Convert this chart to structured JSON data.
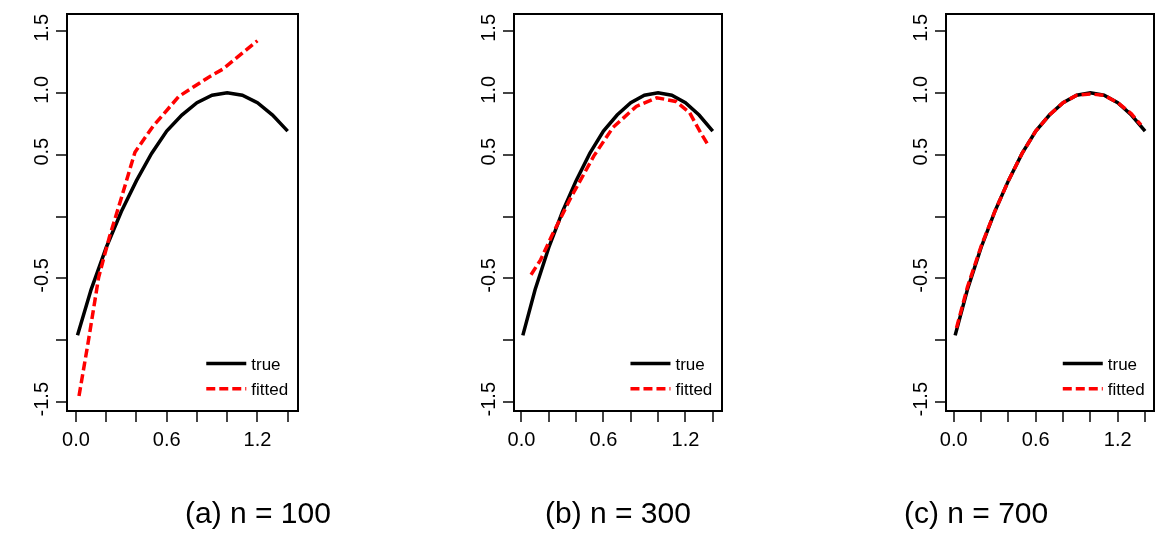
{
  "chart_data": [
    {
      "type": "line",
      "title": "(a) n = 100",
      "legend": "bottom right",
      "xlim": [
        -0.05,
        1.46
      ],
      "ylim": [
        -1.56,
        1.63
      ],
      "xticks": [
        {
          "value": 0,
          "label": "0.0"
        },
        {
          "value": 0.2,
          "label": null
        },
        {
          "value": 0.4,
          "label": null
        },
        {
          "value": 0.6,
          "label": "0.6"
        },
        {
          "value": 0.8,
          "label": null
        },
        {
          "value": 1.0,
          "label": null
        },
        {
          "value": 1.2,
          "label": "1.2"
        },
        {
          "value": 1.4,
          "label": null
        }
      ],
      "yticks": [
        -1.5,
        {
          "value": -1.0,
          "label": null
        },
        -0.5,
        {
          "value": 0,
          "label": null
        },
        0.5,
        {
          "value": 1.0,
          "label": "1.0"
        },
        1.5
      ],
      "series": [
        {
          "name": "true",
          "color": "#000000",
          "line_style": "solid",
          "x": [
            0.01,
            0.1,
            0.2,
            0.3,
            0.4,
            0.5,
            0.6,
            0.7,
            0.8,
            0.9,
            1.0,
            1.1,
            1.2,
            1.3,
            1.4
          ],
          "values": [
            -0.96,
            -0.59,
            -0.25,
            0.04,
            0.29,
            0.51,
            0.69,
            0.82,
            0.92,
            0.98,
            1.0,
            0.98,
            0.92,
            0.82,
            0.69
          ]
        },
        {
          "name": "fitted",
          "color": "#ff0000",
          "line_style": "dashed",
          "x": [
            0.02,
            0.08,
            0.15,
            0.22,
            0.3,
            0.39,
            0.51,
            0.68,
            0.87,
            0.97,
            1.2
          ],
          "values": [
            -1.45,
            -1.02,
            -0.49,
            -0.17,
            0.15,
            0.52,
            0.73,
            0.97,
            1.12,
            1.19,
            1.42
          ]
        }
      ]
    },
    {
      "type": "line",
      "title": "(b) n = 300",
      "legend": "bottom right",
      "xlim": [
        -0.05,
        1.46
      ],
      "ylim": [
        -1.56,
        1.63
      ],
      "xticks": [
        {
          "value": 0,
          "label": "0.0"
        },
        {
          "value": 0.2,
          "label": null
        },
        {
          "value": 0.4,
          "label": null
        },
        {
          "value": 0.6,
          "label": "0.6"
        },
        {
          "value": 0.8,
          "label": null
        },
        {
          "value": 1.0,
          "label": null
        },
        {
          "value": 1.2,
          "label": "1.2"
        },
        {
          "value": 1.4,
          "label": null
        }
      ],
      "yticks": [
        -1.5,
        {
          "value": -1.0,
          "label": null
        },
        -0.5,
        {
          "value": 0,
          "label": null
        },
        0.5,
        {
          "value": 1.0,
          "label": "1.0"
        },
        1.5
      ],
      "series": [
        {
          "name": "true",
          "color": "#000000",
          "line_style": "solid",
          "x": [
            0.01,
            0.1,
            0.2,
            0.3,
            0.4,
            0.5,
            0.6,
            0.7,
            0.8,
            0.9,
            1.0,
            1.1,
            1.2,
            1.3,
            1.4
          ],
          "values": [
            -0.96,
            -0.59,
            -0.25,
            0.04,
            0.29,
            0.51,
            0.69,
            0.82,
            0.92,
            0.98,
            1.0,
            0.98,
            0.92,
            0.82,
            0.69
          ]
        },
        {
          "name": "fitted",
          "color": "#ff0000",
          "line_style": "dashed",
          "x": [
            0.07,
            0.14,
            0.22,
            0.36,
            0.53,
            0.67,
            0.84,
            0.99,
            1.13,
            1.23,
            1.31,
            1.37
          ],
          "values": [
            -0.47,
            -0.35,
            -0.16,
            0.15,
            0.49,
            0.72,
            0.89,
            0.96,
            0.93,
            0.84,
            0.68,
            0.57
          ]
        }
      ]
    },
    {
      "type": "line",
      "title": "(c) n = 700",
      "legend": "bottom right",
      "xlim": [
        -0.05,
        1.46
      ],
      "ylim": [
        -1.56,
        1.63
      ],
      "xticks": [
        {
          "value": 0,
          "label": "0.0"
        },
        {
          "value": 0.2,
          "label": null
        },
        {
          "value": 0.4,
          "label": null
        },
        {
          "value": 0.6,
          "label": "0.6"
        },
        {
          "value": 0.8,
          "label": null
        },
        {
          "value": 1.0,
          "label": null
        },
        {
          "value": 1.2,
          "label": "1.2"
        },
        {
          "value": 1.4,
          "label": null
        }
      ],
      "yticks": [
        -1.5,
        {
          "value": -1.0,
          "label": null
        },
        -0.5,
        {
          "value": 0,
          "label": null
        },
        0.5,
        {
          "value": 1.0,
          "label": "1.0"
        },
        1.5
      ],
      "series": [
        {
          "name": "true",
          "color": "#000000",
          "line_style": "solid",
          "x": [
            0.01,
            0.1,
            0.2,
            0.3,
            0.4,
            0.5,
            0.6,
            0.7,
            0.8,
            0.9,
            1.0,
            1.1,
            1.2,
            1.3,
            1.4
          ],
          "values": [
            -0.96,
            -0.59,
            -0.25,
            0.04,
            0.29,
            0.51,
            0.69,
            0.82,
            0.92,
            0.98,
            1.0,
            0.98,
            0.92,
            0.82,
            0.69
          ]
        },
        {
          "name": "fitted",
          "color": "#ff0000",
          "line_style": "dashed",
          "x": [
            0.02,
            0.1,
            0.2,
            0.3,
            0.4,
            0.5,
            0.6,
            0.7,
            0.8,
            0.9,
            1.0,
            1.1,
            1.2,
            1.3,
            1.37
          ],
          "values": [
            -0.9,
            -0.57,
            -0.24,
            0.04,
            0.29,
            0.51,
            0.69,
            0.82,
            0.92,
            0.98,
            0.99,
            0.98,
            0.92,
            0.83,
            0.74
          ]
        }
      ]
    }
  ]
}
